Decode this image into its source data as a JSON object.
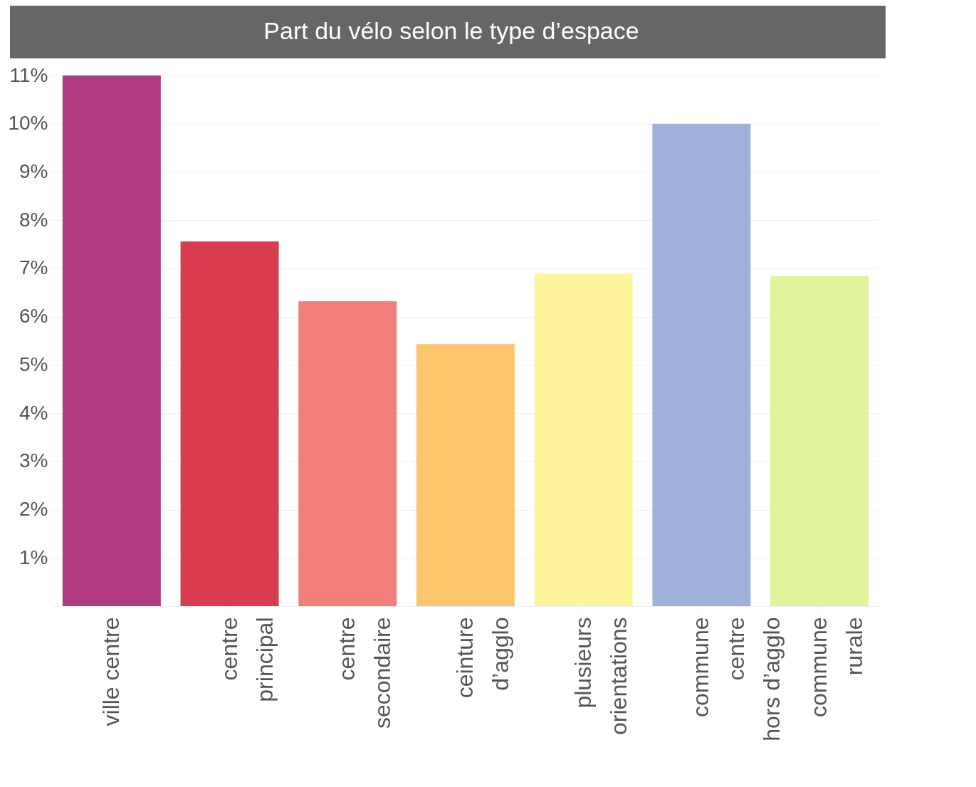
{
  "chart_data": {
    "type": "bar",
    "title": "Part du vélo selon le type d’espace",
    "categories": [
      "ville centre",
      "centre\nprincipal",
      "centre\nsecondaire",
      "ceinture\nd’agglo",
      "plusieurs\norientations",
      "commune\ncentre\nhors d’agglo",
      "commune\nrurale"
    ],
    "values": [
      11.0,
      7.56,
      6.32,
      5.43,
      6.89,
      10.0,
      6.84
    ],
    "colors": [
      "#b03a7f",
      "#da3c4f",
      "#f07f79",
      "#fbc56c",
      "#fef49b",
      "#9fb1da",
      "#dff49b"
    ],
    "ylim": [
      0,
      11
    ],
    "yticks": [
      {
        "value": 1,
        "label": "1%"
      },
      {
        "value": 2,
        "label": "2%"
      },
      {
        "value": 3,
        "label": "3%"
      },
      {
        "value": 4,
        "label": "4%"
      },
      {
        "value": 5,
        "label": "5%"
      },
      {
        "value": 6,
        "label": "6%"
      },
      {
        "value": 7,
        "label": "7%"
      },
      {
        "value": 8,
        "label": "8%"
      },
      {
        "value": 9,
        "label": "9%"
      },
      {
        "value": 10,
        "label": "10%"
      },
      {
        "value": 11,
        "label": "11%"
      }
    ],
    "grid": true
  }
}
